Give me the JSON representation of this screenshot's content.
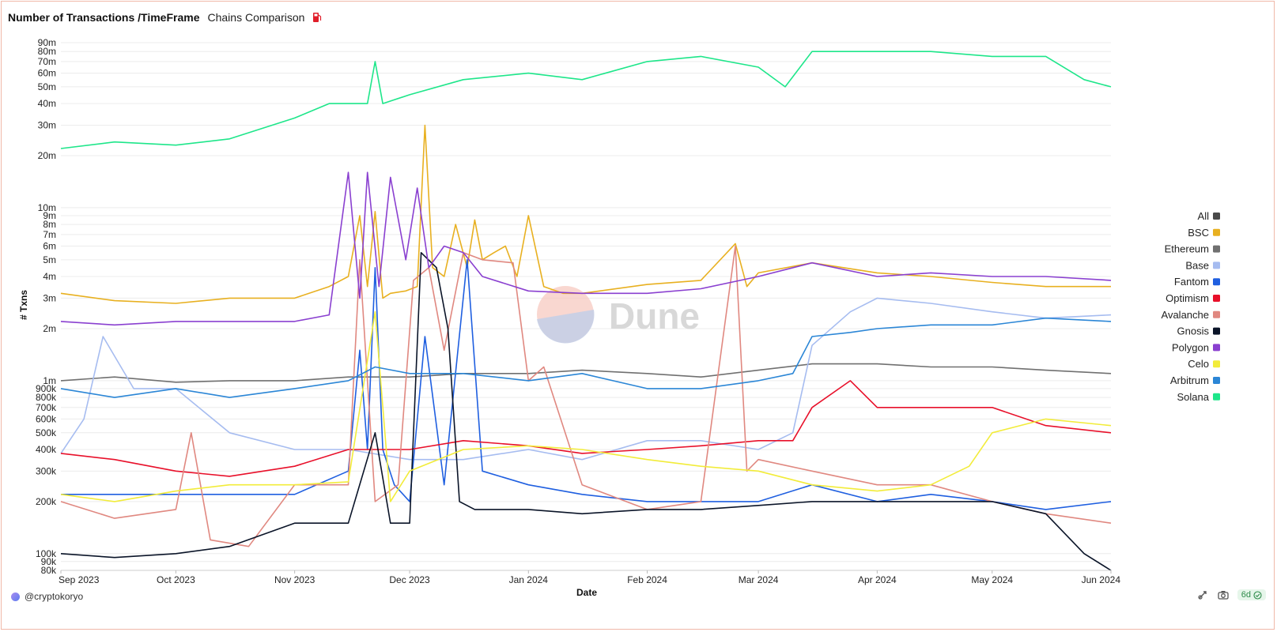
{
  "header": {
    "title": "Number of Transactions /TimeFrame",
    "subtitle": "Chains Comparison",
    "icon": "fuel-pump-icon"
  },
  "footer": {
    "author": "@cryptokoryo",
    "age": "6d"
  },
  "colors": {
    "grid": "#ececec",
    "frame": "#f0b8a8"
  },
  "chart_data": {
    "type": "line",
    "xlabel": "Date",
    "ylabel": "# Txns",
    "y_scale": "log",
    "ylim": [
      80000,
      100000000
    ],
    "x_range": [
      "2023-09-01",
      "2024-06-01"
    ],
    "x_ticks": [
      {
        "date": "2023-09-01",
        "label": "Sep 2023"
      },
      {
        "date": "2023-10-01",
        "label": "Oct 2023"
      },
      {
        "date": "2023-11-01",
        "label": "Nov 2023"
      },
      {
        "date": "2023-12-01",
        "label": "Dec 2023"
      },
      {
        "date": "2024-01-01",
        "label": "Jan 2024"
      },
      {
        "date": "2024-02-01",
        "label": "Feb 2024"
      },
      {
        "date": "2024-03-01",
        "label": "Mar 2024"
      },
      {
        "date": "2024-04-01",
        "label": "Apr 2024"
      },
      {
        "date": "2024-05-01",
        "label": "May 2024"
      },
      {
        "date": "2024-06-01",
        "label": "Jun 2024"
      }
    ],
    "y_ticks": [
      {
        "value": 80000,
        "label": "80k"
      },
      {
        "value": 90000,
        "label": "90k"
      },
      {
        "value": 100000,
        "label": "100k"
      },
      {
        "value": 200000,
        "label": "200k"
      },
      {
        "value": 300000,
        "label": "300k"
      },
      {
        "value": 400000,
        "label": "400k"
      },
      {
        "value": 500000,
        "label": "500k"
      },
      {
        "value": 600000,
        "label": "600k"
      },
      {
        "value": 700000,
        "label": "700k"
      },
      {
        "value": 800000,
        "label": "800k"
      },
      {
        "value": 900000,
        "label": "900k"
      },
      {
        "value": 1000000,
        "label": "1m"
      },
      {
        "value": 2000000,
        "label": "2m"
      },
      {
        "value": 3000000,
        "label": "3m"
      },
      {
        "value": 4000000,
        "label": "4m"
      },
      {
        "value": 5000000,
        "label": "5m"
      },
      {
        "value": 6000000,
        "label": "6m"
      },
      {
        "value": 7000000,
        "label": "7m"
      },
      {
        "value": 8000000,
        "label": "8m"
      },
      {
        "value": 9000000,
        "label": "9m"
      },
      {
        "value": 10000000,
        "label": "10m"
      },
      {
        "value": 20000000,
        "label": "20m"
      },
      {
        "value": 30000000,
        "label": "30m"
      },
      {
        "value": 40000000,
        "label": "40m"
      },
      {
        "value": 50000000,
        "label": "50m"
      },
      {
        "value": 60000000,
        "label": "60m"
      },
      {
        "value": 70000000,
        "label": "70m"
      },
      {
        "value": 80000000,
        "label": "80m"
      },
      {
        "value": 90000000,
        "label": "90m"
      }
    ],
    "legend": {
      "position": "right"
    },
    "grid": true,
    "watermark": "Dune",
    "series": [
      {
        "name": "All",
        "color": "#4a4a4a",
        "visible": false,
        "x": [],
        "y": []
      },
      {
        "name": "BSC",
        "color": "#e8b020",
        "x": [
          "2023-09-01",
          "2023-09-15",
          "2023-10-01",
          "2023-10-15",
          "2023-11-01",
          "2023-11-10",
          "2023-11-15",
          "2023-11-18",
          "2023-11-20",
          "2023-11-22",
          "2023-11-24",
          "2023-11-26",
          "2023-11-30",
          "2023-12-03",
          "2023-12-05",
          "2023-12-07",
          "2023-12-10",
          "2023-12-13",
          "2023-12-16",
          "2023-12-18",
          "2023-12-20",
          "2023-12-23",
          "2023-12-26",
          "2023-12-29",
          "2024-01-01",
          "2024-01-05",
          "2024-01-10",
          "2024-01-15",
          "2024-02-01",
          "2024-02-15",
          "2024-02-24",
          "2024-02-27",
          "2024-03-01",
          "2024-03-15",
          "2024-04-01",
          "2024-04-15",
          "2024-05-01",
          "2024-05-15",
          "2024-06-01"
        ],
        "y": [
          3200000,
          2900000,
          2800000,
          3000000,
          3000000,
          3500000,
          4000000,
          9000000,
          3500000,
          9500000,
          3000000,
          3200000,
          3300000,
          3500000,
          30000000,
          4500000,
          4000000,
          8000000,
          4500000,
          8500000,
          5000000,
          5500000,
          6000000,
          4000000,
          9000000,
          3500000,
          3200000,
          3200000,
          3600000,
          3800000,
          6200000,
          3500000,
          4200000,
          4800000,
          4200000,
          4000000,
          3700000,
          3500000,
          3500000
        ]
      },
      {
        "name": "Ethereum",
        "color": "#707070",
        "x": [
          "2023-09-01",
          "2023-09-15",
          "2023-10-01",
          "2023-10-15",
          "2023-11-01",
          "2023-11-15",
          "2023-12-01",
          "2023-12-15",
          "2024-01-01",
          "2024-01-15",
          "2024-02-01",
          "2024-02-15",
          "2024-03-01",
          "2024-03-15",
          "2024-04-01",
          "2024-04-15",
          "2024-05-01",
          "2024-05-15",
          "2024-06-01"
        ],
        "y": [
          1000000,
          1050000,
          980000,
          1000000,
          1000000,
          1050000,
          1050000,
          1100000,
          1100000,
          1150000,
          1100000,
          1050000,
          1150000,
          1250000,
          1250000,
          1200000,
          1200000,
          1150000,
          1100000
        ]
      },
      {
        "name": "Base",
        "color": "#a6bcf0",
        "x": [
          "2023-09-01",
          "2023-09-07",
          "2023-09-12",
          "2023-09-20",
          "2023-10-01",
          "2023-10-15",
          "2023-11-01",
          "2023-11-15",
          "2023-12-01",
          "2023-12-15",
          "2024-01-01",
          "2024-01-15",
          "2024-02-01",
          "2024-02-15",
          "2024-03-01",
          "2024-03-10",
          "2024-03-15",
          "2024-03-25",
          "2024-04-01",
          "2024-04-15",
          "2024-05-01",
          "2024-05-15",
          "2024-06-01"
        ],
        "y": [
          380000,
          600000,
          1800000,
          900000,
          900000,
          500000,
          400000,
          400000,
          350000,
          350000,
          400000,
          350000,
          450000,
          450000,
          400000,
          500000,
          1600000,
          2500000,
          3000000,
          2800000,
          2500000,
          2300000,
          2400000
        ]
      },
      {
        "name": "Fantom",
        "color": "#1f5fe0",
        "x": [
          "2023-09-01",
          "2023-10-01",
          "2023-11-01",
          "2023-11-15",
          "2023-11-18",
          "2023-11-20",
          "2023-11-22",
          "2023-11-24",
          "2023-11-27",
          "2023-12-01",
          "2023-12-05",
          "2023-12-10",
          "2023-12-16",
          "2023-12-20",
          "2024-01-01",
          "2024-01-15",
          "2024-02-01",
          "2024-02-15",
          "2024-03-01",
          "2024-03-15",
          "2024-04-01",
          "2024-04-15",
          "2024-05-01",
          "2024-05-15",
          "2024-06-01"
        ],
        "y": [
          220000,
          220000,
          220000,
          300000,
          1500000,
          400000,
          4500000,
          400000,
          250000,
          200000,
          1800000,
          250000,
          5000000,
          300000,
          250000,
          220000,
          200000,
          200000,
          200000,
          250000,
          200000,
          220000,
          200000,
          180000,
          200000
        ]
      },
      {
        "name": "Optimism",
        "color": "#e8102a",
        "x": [
          "2023-09-01",
          "2023-09-15",
          "2023-10-01",
          "2023-10-15",
          "2023-11-01",
          "2023-11-15",
          "2023-12-01",
          "2023-12-15",
          "2024-01-01",
          "2024-01-15",
          "2024-02-01",
          "2024-02-15",
          "2024-03-01",
          "2024-03-10",
          "2024-03-15",
          "2024-03-25",
          "2024-04-01",
          "2024-04-15",
          "2024-05-01",
          "2024-05-15",
          "2024-06-01"
        ],
        "y": [
          380000,
          350000,
          300000,
          280000,
          320000,
          400000,
          400000,
          450000,
          420000,
          380000,
          400000,
          420000,
          450000,
          450000,
          700000,
          1000000,
          700000,
          700000,
          700000,
          550000,
          500000
        ]
      },
      {
        "name": "Avalanche",
        "color": "#e08880",
        "x": [
          "2023-09-01",
          "2023-09-15",
          "2023-10-01",
          "2023-10-05",
          "2023-10-10",
          "2023-10-20",
          "2023-11-01",
          "2023-11-15",
          "2023-11-18",
          "2023-11-22",
          "2023-11-28",
          "2023-12-02",
          "2023-12-06",
          "2023-12-10",
          "2023-12-15",
          "2023-12-20",
          "2023-12-28",
          "2024-01-01",
          "2024-01-05",
          "2024-01-15",
          "2024-02-01",
          "2024-02-15",
          "2024-02-24",
          "2024-02-27",
          "2024-03-01",
          "2024-03-15",
          "2024-04-01",
          "2024-04-15",
          "2024-05-01",
          "2024-05-15",
          "2024-06-01"
        ],
        "y": [
          200000,
          160000,
          180000,
          500000,
          120000,
          110000,
          250000,
          250000,
          5000000,
          200000,
          250000,
          3800000,
          4500000,
          1500000,
          5500000,
          5000000,
          4800000,
          1000000,
          1200000,
          250000,
          180000,
          200000,
          6000000,
          300000,
          350000,
          300000,
          250000,
          250000,
          200000,
          170000,
          150000
        ]
      },
      {
        "name": "Gnosis",
        "color": "#0a1428",
        "x": [
          "2023-09-01",
          "2023-09-15",
          "2023-10-01",
          "2023-10-15",
          "2023-11-01",
          "2023-11-15",
          "2023-11-22",
          "2023-11-26",
          "2023-12-01",
          "2023-12-04",
          "2023-12-08",
          "2023-12-11",
          "2023-12-14",
          "2023-12-18",
          "2024-01-01",
          "2024-01-15",
          "2024-02-01",
          "2024-02-15",
          "2024-03-01",
          "2024-03-15",
          "2024-04-01",
          "2024-04-15",
          "2024-05-01",
          "2024-05-15",
          "2024-05-25",
          "2024-06-01"
        ],
        "y": [
          100000,
          95000,
          100000,
          110000,
          150000,
          150000,
          500000,
          150000,
          150000,
          5500000,
          4500000,
          2000000,
          200000,
          180000,
          180000,
          170000,
          180000,
          180000,
          190000,
          200000,
          200000,
          200000,
          200000,
          170000,
          100000,
          80000
        ]
      },
      {
        "name": "Polygon",
        "color": "#8a40d0",
        "x": [
          "2023-09-01",
          "2023-09-15",
          "2023-10-01",
          "2023-10-15",
          "2023-11-01",
          "2023-11-10",
          "2023-11-15",
          "2023-11-18",
          "2023-11-20",
          "2023-11-23",
          "2023-11-26",
          "2023-11-30",
          "2023-12-03",
          "2023-12-06",
          "2023-12-10",
          "2023-12-15",
          "2023-12-20",
          "2024-01-01",
          "2024-01-15",
          "2024-02-01",
          "2024-02-15",
          "2024-03-01",
          "2024-03-15",
          "2024-04-01",
          "2024-04-15",
          "2024-05-01",
          "2024-05-15",
          "2024-06-01"
        ],
        "y": [
          2200000,
          2100000,
          2200000,
          2200000,
          2200000,
          2400000,
          16000000,
          3000000,
          16000000,
          3500000,
          15000000,
          5000000,
          13000000,
          4500000,
          6000000,
          5500000,
          4000000,
          3300000,
          3200000,
          3200000,
          3400000,
          4000000,
          4800000,
          4000000,
          4200000,
          4000000,
          4000000,
          3800000
        ]
      },
      {
        "name": "Celo",
        "color": "#f2ec3a",
        "x": [
          "2023-09-01",
          "2023-09-15",
          "2023-10-01",
          "2023-10-15",
          "2023-11-01",
          "2023-11-15",
          "2023-11-22",
          "2023-11-26",
          "2023-12-01",
          "2023-12-15",
          "2024-01-01",
          "2024-01-15",
          "2024-02-01",
          "2024-02-15",
          "2024-03-01",
          "2024-03-15",
          "2024-04-01",
          "2024-04-15",
          "2024-04-25",
          "2024-05-01",
          "2024-05-15",
          "2024-06-01"
        ],
        "y": [
          220000,
          200000,
          230000,
          250000,
          250000,
          260000,
          2500000,
          200000,
          300000,
          400000,
          420000,
          400000,
          350000,
          320000,
          300000,
          250000,
          230000,
          250000,
          320000,
          500000,
          600000,
          550000
        ]
      },
      {
        "name": "Arbitrum",
        "color": "#2b86d6",
        "x": [
          "2023-09-01",
          "2023-09-15",
          "2023-10-01",
          "2023-10-15",
          "2023-11-01",
          "2023-11-15",
          "2023-11-22",
          "2023-12-01",
          "2023-12-15",
          "2024-01-01",
          "2024-01-15",
          "2024-02-01",
          "2024-02-15",
          "2024-03-01",
          "2024-03-10",
          "2024-03-15",
          "2024-03-25",
          "2024-04-01",
          "2024-04-15",
          "2024-05-01",
          "2024-05-15",
          "2024-06-01"
        ],
        "y": [
          900000,
          800000,
          900000,
          800000,
          900000,
          1000000,
          1200000,
          1100000,
          1100000,
          1000000,
          1100000,
          900000,
          900000,
          1000000,
          1100000,
          1800000,
          1900000,
          2000000,
          2100000,
          2100000,
          2300000,
          2200000
        ]
      },
      {
        "name": "Solana",
        "color": "#1ee68a",
        "x": [
          "2023-09-01",
          "2023-09-15",
          "2023-10-01",
          "2023-10-15",
          "2023-11-01",
          "2023-11-10",
          "2023-11-20",
          "2023-11-22",
          "2023-11-24",
          "2023-12-01",
          "2023-12-15",
          "2024-01-01",
          "2024-01-15",
          "2024-02-01",
          "2024-02-15",
          "2024-03-01",
          "2024-03-08",
          "2024-03-15",
          "2024-04-01",
          "2024-04-15",
          "2024-05-01",
          "2024-05-15",
          "2024-05-25",
          "2024-06-01"
        ],
        "y": [
          22000000,
          24000000,
          23000000,
          25000000,
          33000000,
          40000000,
          40000000,
          70000000,
          40000000,
          45000000,
          55000000,
          60000000,
          55000000,
          70000000,
          75000000,
          65000000,
          50000000,
          80000000,
          80000000,
          80000000,
          75000000,
          75000000,
          55000000,
          50000000
        ]
      }
    ]
  }
}
